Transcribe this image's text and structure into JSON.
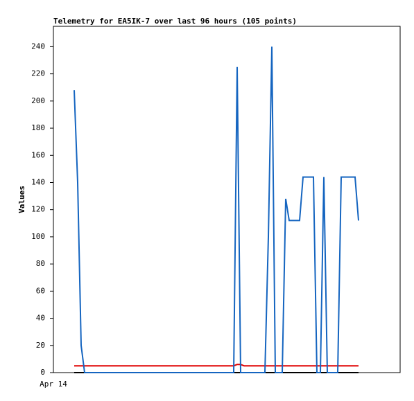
{
  "chart_data": {
    "type": "line",
    "title": "Telemetry for EA5IK-7 over last 96 hours (105 points)",
    "y_label": "Values",
    "categories": [
      "Apr 14",
      null,
      null,
      null,
      null,
      null,
      null,
      null,
      null,
      null,
      null,
      null,
      null,
      null,
      null,
      null,
      null,
      null,
      null,
      null,
      null,
      null,
      null,
      null,
      null,
      null,
      null,
      null,
      null,
      null,
      null,
      null,
      null,
      null,
      null,
      null,
      null,
      null,
      null,
      null,
      null,
      null,
      null,
      null,
      null,
      null,
      null,
      null,
      null,
      null,
      null,
      null,
      null,
      null,
      null,
      null,
      null,
      null,
      null,
      null,
      null,
      null,
      null,
      null,
      null,
      null,
      null,
      null,
      null,
      null,
      null,
      null,
      null,
      null,
      null,
      null,
      null,
      null,
      null,
      null,
      null,
      null,
      null,
      null,
      null,
      null,
      null,
      null,
      null,
      null,
      null,
      null,
      null,
      null,
      null,
      null,
      null,
      null,
      null,
      null,
      null
    ],
    "ylim": [
      0,
      255
    ],
    "yticks": [
      0,
      20,
      40,
      60,
      80,
      100,
      120,
      140,
      160,
      180,
      200,
      220,
      240
    ],
    "series": [
      {
        "color": "#000000",
        "values": [
          null,
          null,
          null,
          null,
          null,
          null,
          0,
          0,
          0,
          0,
          0,
          0,
          0,
          0,
          0,
          0,
          0,
          0,
          0,
          0,
          0,
          0,
          0,
          0,
          0,
          0,
          0,
          0,
          0,
          0,
          0,
          0,
          0,
          0,
          0,
          0,
          0,
          0,
          0,
          0,
          0,
          0,
          0,
          0,
          0,
          0,
          0,
          0,
          0,
          0,
          0,
          0,
          0,
          0,
          0,
          0,
          0,
          0,
          0,
          0,
          0,
          0,
          0,
          0,
          0,
          0,
          0,
          0,
          0,
          0,
          0,
          0,
          0,
          0,
          0,
          0,
          0,
          0,
          0,
          0,
          0,
          0,
          0,
          0,
          0,
          0,
          0,
          0,
          0,
          null,
          null,
          null,
          null,
          null,
          null,
          null,
          null,
          null,
          null,
          null,
          null
        ]
      },
      {
        "color": "#e00000",
        "values": [
          null,
          null,
          null,
          null,
          null,
          null,
          5,
          5,
          5,
          5,
          5,
          5,
          5,
          5,
          5,
          5,
          5,
          5,
          5,
          5,
          5,
          5,
          5,
          5,
          5,
          5,
          5,
          5,
          5,
          5,
          5,
          5,
          5,
          5,
          5,
          5,
          5,
          5,
          5,
          5,
          5,
          5,
          5,
          5,
          5,
          5,
          5,
          5,
          5,
          5,
          5,
          5,
          5,
          6,
          6,
          5,
          5,
          5,
          5,
          5,
          5,
          5,
          5,
          5,
          5,
          5,
          5,
          5,
          5,
          5,
          5,
          5,
          5,
          5,
          5,
          5,
          5,
          5,
          5,
          5,
          5,
          5,
          5,
          5,
          5,
          5,
          5,
          5,
          5,
          null,
          null,
          null,
          null,
          null,
          null,
          null,
          null,
          null,
          null,
          null,
          null
        ]
      },
      {
        "color": "#1565c0",
        "values": [
          null,
          null,
          null,
          null,
          null,
          null,
          208,
          140,
          20,
          0,
          0,
          0,
          0,
          0,
          0,
          0,
          0,
          0,
          0,
          0,
          0,
          0,
          0,
          0,
          0,
          0,
          0,
          0,
          0,
          0,
          0,
          0,
          0,
          0,
          0,
          0,
          0,
          0,
          0,
          0,
          0,
          0,
          0,
          0,
          0,
          0,
          0,
          0,
          0,
          0,
          0,
          0,
          0,
          225,
          0,
          0,
          0,
          0,
          0,
          0,
          0,
          0,
          100,
          240,
          0,
          0,
          0,
          128,
          112,
          112,
          112,
          112,
          144,
          144,
          144,
          144,
          0,
          0,
          144,
          0,
          0,
          0,
          0,
          144,
          144,
          144,
          144,
          144,
          112,
          null,
          null,
          null,
          null,
          null,
          null,
          null,
          null,
          null,
          null,
          null,
          null
        ]
      }
    ]
  }
}
